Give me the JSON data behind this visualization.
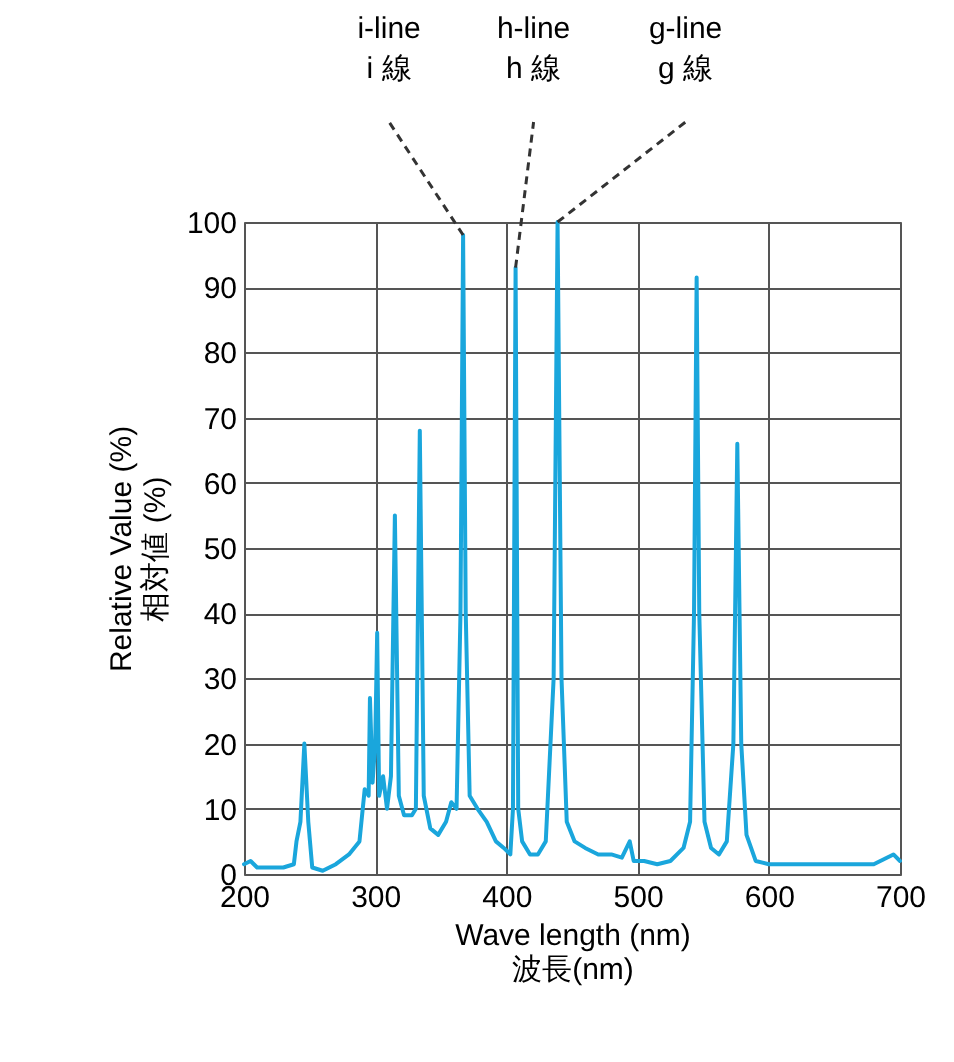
{
  "chart_data": {
    "type": "line",
    "xlabel": "Wave length (nm)\n波長(nm)",
    "ylabel": "Relative Value (%)\n相対値 (%)",
    "annotations": [
      {
        "text": "i-line\ni 線",
        "x": 367,
        "y": 98
      },
      {
        "text": "h-line\nh 線",
        "x": 407,
        "y": 93
      },
      {
        "text": "g-line\ng 線",
        "x": 439,
        "y": 100
      }
    ],
    "x": [
      200,
      205,
      210,
      220,
      230,
      238,
      240,
      243,
      246,
      249,
      252,
      260,
      270,
      280,
      288,
      292,
      295,
      296,
      298,
      300,
      301.5,
      303,
      306,
      309,
      312,
      315,
      318,
      322,
      328,
      331,
      334,
      337,
      342,
      348,
      354,
      358,
      362,
      365,
      367,
      369,
      372,
      378,
      385,
      392,
      398,
      403,
      405,
      407,
      409,
      412,
      418,
      424,
      430,
      436,
      439,
      442,
      446,
      452,
      460,
      470,
      480,
      488,
      494,
      497,
      505,
      515,
      525,
      535,
      540,
      543,
      545,
      547,
      551,
      556,
      562,
      568,
      573,
      576,
      579,
      583,
      590,
      600,
      620,
      650,
      680,
      695,
      700
    ],
    "series": [
      {
        "color": "#1aa6dc",
        "values": [
          1.5,
          2,
          1,
          1,
          1,
          1.5,
          5,
          8,
          20,
          8,
          1,
          0.5,
          1.5,
          3,
          5,
          13,
          12,
          27,
          14,
          20,
          37,
          12,
          15,
          10,
          15,
          55,
          12,
          9,
          9,
          10,
          68,
          12,
          7,
          6,
          8,
          11,
          10,
          40,
          98,
          40,
          12,
          10,
          8,
          5,
          4,
          3,
          10,
          93,
          10,
          5,
          3,
          3,
          5,
          30,
          100,
          30,
          8,
          5,
          4,
          3,
          3,
          2.5,
          5,
          2,
          2,
          1.5,
          2,
          4,
          8,
          40,
          91.5,
          40,
          8,
          4,
          3,
          5,
          20,
          66,
          20,
          6,
          2,
          1.5,
          1.5,
          1.5,
          1.5,
          3,
          2
        ]
      }
    ],
    "xlim": [
      200,
      700
    ],
    "xticks": [
      200,
      300,
      400,
      500,
      600,
      700
    ],
    "ylim": [
      0,
      100
    ],
    "yticks": [
      0,
      10,
      20,
      30,
      40,
      50,
      60,
      70,
      80,
      90,
      100
    ],
    "grid": true,
    "marker": "none",
    "line_style": "solid"
  }
}
